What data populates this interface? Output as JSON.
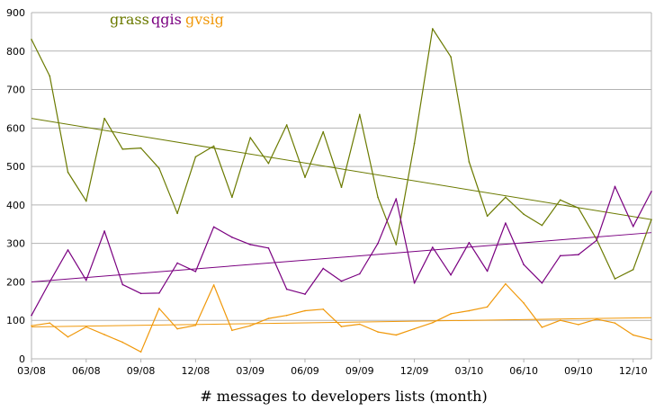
{
  "chart_data": {
    "type": "line",
    "xlabel": "# messages to developers lists (month)",
    "ylabel": "",
    "ylim": [
      0,
      900
    ],
    "yticks": [
      0,
      100,
      200,
      300,
      400,
      500,
      600,
      700,
      800,
      900
    ],
    "x_tick_labels": [
      "03/08",
      "06/08",
      "09/08",
      "12/08",
      "03/09",
      "06/09",
      "09/09",
      "12/09",
      "03/10",
      "06/10",
      "09/10",
      "12/10"
    ],
    "x_months": [
      "03/08",
      "04/08",
      "05/08",
      "06/08",
      "07/08",
      "08/08",
      "09/08",
      "10/08",
      "11/08",
      "12/08",
      "01/09",
      "02/09",
      "03/09",
      "04/09",
      "05/09",
      "06/09",
      "07/09",
      "08/09",
      "09/09",
      "10/09",
      "11/09",
      "12/09",
      "01/10",
      "02/10",
      "03/10",
      "04/10",
      "05/10",
      "06/10",
      "07/10",
      "08/10",
      "09/10",
      "10/10",
      "11/10",
      "12/10",
      "01/11"
    ],
    "grid": "horizontal",
    "legend_position": "top-left",
    "series": [
      {
        "name": "grass",
        "color": "#6b7a00",
        "values": [
          830,
          735,
          485,
          410,
          625,
          545,
          548,
          495,
          378,
          525,
          553,
          420,
          575,
          508,
          608,
          472,
          590,
          446,
          635,
          420,
          297,
          560,
          858,
          785,
          512,
          371,
          420,
          376,
          347,
          413,
          392,
          310,
          208,
          232,
          362
        ],
        "trend": [
          625,
          362
        ]
      },
      {
        "name": "qgis",
        "color": "#7a0080",
        "values": [
          113,
          200,
          283,
          204,
          332,
          193,
          170,
          171,
          249,
          227,
          343,
          316,
          297,
          288,
          181,
          168,
          235,
          202,
          221,
          300,
          416,
          197,
          290,
          218,
          302,
          228,
          353,
          245,
          197,
          268,
          271,
          308,
          448,
          344,
          435
        ],
        "trend": [
          200,
          328
        ]
      },
      {
        "name": "gvsig",
        "color": "#f0980a",
        "values": [
          86,
          93,
          57,
          83,
          63,
          43,
          18,
          131,
          78,
          87,
          192,
          74,
          86,
          105,
          113,
          125,
          129,
          84,
          90,
          70,
          62,
          78,
          94,
          117,
          125,
          135,
          195,
          145,
          82,
          100,
          89,
          103,
          93,
          62,
          50
        ],
        "trend": [
          83,
          107
        ]
      }
    ]
  }
}
